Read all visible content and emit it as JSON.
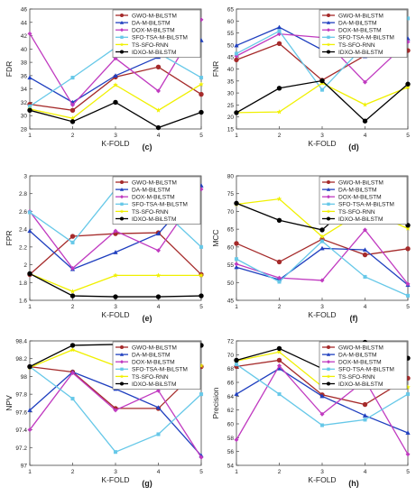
{
  "figure": {
    "legend_labels": [
      "GWO-M-BiLSTM",
      "DA-M-BiLSTM",
      "DOX-M-BiLSTM",
      "SFO-TSA-M-BiLSTM",
      "TS-SFO-RNN",
      "IDXO-M-BiLSTM"
    ],
    "series_colors": [
      "#a52a2a",
      "#1f3fbf",
      "#c03ac0",
      "#66c8e8",
      "#f0f000",
      "#000000"
    ]
  },
  "chart_data": [
    {
      "type": "line",
      "panel": "(c)",
      "xlabel": "K-FOLD",
      "ylabel": "FDR",
      "x": [
        1,
        2,
        3,
        4,
        5
      ],
      "xlim": [
        1,
        5
      ],
      "ylim": [
        28,
        46
      ],
      "yticks": [
        28,
        30,
        32,
        34,
        36,
        38,
        40,
        42,
        44,
        46
      ],
      "legend": "top-right",
      "legend_inside": true,
      "series": [
        {
          "name": "GWO-M-BiLSTM",
          "values": [
            31.7,
            30.8,
            35.8,
            37.3,
            33.2
          ]
        },
        {
          "name": "DA-M-BiLSTM",
          "values": [
            35.7,
            32.0,
            36.0,
            38.8,
            41.3
          ]
        },
        {
          "name": "DOX-M-BiLSTM",
          "values": [
            42.3,
            31.6,
            38.6,
            33.7,
            44.4
          ]
        },
        {
          "name": "SFO-TSA-M-BiLSTM",
          "values": [
            31.4,
            35.7,
            40.2,
            39.4,
            35.7
          ]
        },
        {
          "name": "TS-SFO-RNN",
          "values": [
            31.0,
            29.6,
            34.6,
            30.8,
            34.7
          ]
        },
        {
          "name": "IDXO-M-BiLSTM",
          "values": [
            30.8,
            29.1,
            32.0,
            28.2,
            30.5
          ]
        }
      ]
    },
    {
      "type": "line",
      "panel": "(d)",
      "xlabel": "K-FOLD",
      "ylabel": "FNR",
      "x": [
        1,
        2,
        3,
        4,
        5
      ],
      "xlim": [
        1,
        5
      ],
      "ylim": [
        15,
        65
      ],
      "yticks": [
        15,
        20,
        25,
        30,
        35,
        40,
        45,
        50,
        55,
        60,
        65
      ],
      "legend": "top-right",
      "legend_inside": true,
      "series": [
        {
          "name": "GWO-M-BiLSTM",
          "values": [
            43.8,
            50.6,
            35.3,
            45.6,
            47.7
          ]
        },
        {
          "name": "DA-M-BiLSTM",
          "values": [
            49.8,
            57.4,
            48.0,
            45.3,
            52.7
          ]
        },
        {
          "name": "DOX-M-BiLSTM",
          "values": [
            45.4,
            54.6,
            53.1,
            34.5,
            51.3
          ]
        },
        {
          "name": "SFO-TSA-M-BiLSTM",
          "values": [
            46.4,
            55.8,
            31.3,
            50.0,
            61.1
          ]
        },
        {
          "name": "TS-SFO-RNN",
          "values": [
            21.8,
            22.1,
            34.1,
            25.1,
            32.4
          ]
        },
        {
          "name": "IDXO-M-BiLSTM",
          "values": [
            21.8,
            32.0,
            35.1,
            18.3,
            33.7
          ]
        }
      ]
    },
    {
      "type": "line",
      "panel": "(e)",
      "xlabel": "K-FOLD",
      "ylabel": "FPR",
      "x": [
        1,
        2,
        3,
        4,
        5
      ],
      "xlim": [
        1,
        5
      ],
      "ylim": [
        1.6,
        3.0
      ],
      "yticks": [
        1.6,
        1.8,
        2.0,
        2.2,
        2.4,
        2.6,
        2.8,
        3.0
      ],
      "legend": "top-right",
      "legend_inside": true,
      "series": [
        {
          "name": "GWO-M-BiLSTM",
          "values": [
            1.89,
            2.32,
            2.35,
            2.36,
            1.89
          ]
        },
        {
          "name": "DA-M-BiLSTM",
          "values": [
            2.38,
            1.95,
            2.14,
            2.35,
            2.89
          ]
        },
        {
          "name": "DOX-M-BiLSTM",
          "values": [
            2.6,
            1.96,
            2.38,
            2.16,
            2.85
          ]
        },
        {
          "name": "SFO-TSA-M-BiLSTM",
          "values": [
            2.59,
            2.25,
            2.85,
            2.65,
            2.2
          ]
        },
        {
          "name": "TS-SFO-RNN",
          "values": [
            1.9,
            1.7,
            1.88,
            1.88,
            1.88
          ]
        },
        {
          "name": "IDXO-M-BiLSTM",
          "values": [
            1.9,
            1.65,
            1.64,
            1.64,
            1.65
          ]
        }
      ]
    },
    {
      "type": "line",
      "panel": "(f)",
      "xlabel": "K-FOLD",
      "ylabel": "MCC",
      "x": [
        1,
        2,
        3,
        4,
        5
      ],
      "xlim": [
        1,
        5
      ],
      "ylim": [
        45,
        80
      ],
      "yticks": [
        45,
        50,
        55,
        60,
        65,
        70,
        75,
        80
      ],
      "legend": "top-right",
      "legend_inside": true,
      "series": [
        {
          "name": "GWO-M-BiLSTM",
          "values": [
            61.0,
            55.8,
            62.2,
            57.8,
            59.5
          ]
        },
        {
          "name": "DA-M-BiLSTM",
          "values": [
            54.3,
            50.8,
            59.6,
            59.2,
            49.3
          ]
        },
        {
          "name": "DOX-M-BiLSTM",
          "values": [
            55.2,
            51.3,
            50.6,
            64.8,
            49.6
          ]
        },
        {
          "name": "SFO-TSA-M-BiLSTM",
          "values": [
            56.6,
            50.2,
            61.6,
            51.6,
            46.3
          ]
        },
        {
          "name": "TS-SFO-RNN",
          "values": [
            72.0,
            73.5,
            62.9,
            70.4,
            65.2
          ]
        },
        {
          "name": "IDXO-M-BiLSTM",
          "values": [
            72.3,
            67.5,
            64.8,
            75.5,
            66.1
          ]
        }
      ]
    },
    {
      "type": "line",
      "panel": "(g)",
      "xlabel": "K-FOLD",
      "ylabel": "NPV",
      "x": [
        1,
        2,
        3,
        4,
        5
      ],
      "xlim": [
        1,
        5
      ],
      "ylim": [
        97.0,
        98.4
      ],
      "yticks": [
        97.0,
        97.2,
        97.4,
        97.6,
        97.8,
        98.0,
        98.2,
        98.4
      ],
      "legend": "top-right",
      "legend_inside": true,
      "series": [
        {
          "name": "GWO-M-BiLSTM",
          "values": [
            98.11,
            98.05,
            97.64,
            97.64,
            98.11
          ]
        },
        {
          "name": "DA-M-BiLSTM",
          "values": [
            97.62,
            98.05,
            97.86,
            97.65,
            97.11
          ]
        },
        {
          "name": "DOX-M-BiLSTM",
          "values": [
            97.4,
            98.04,
            97.62,
            97.84,
            97.09
          ]
        },
        {
          "name": "SFO-TSA-M-BiLSTM",
          "values": [
            98.11,
            97.75,
            97.15,
            97.35,
            97.8
          ]
        },
        {
          "name": "TS-SFO-RNN",
          "values": [
            98.1,
            98.3,
            98.12,
            98.12,
            98.12
          ]
        },
        {
          "name": "IDXO-M-BiLSTM",
          "values": [
            98.11,
            98.35,
            98.36,
            98.36,
            98.35
          ]
        }
      ]
    },
    {
      "type": "line",
      "panel": "(h)",
      "xlabel": "K-FOLD",
      "ylabel": "Precision",
      "x": [
        1,
        2,
        3,
        4,
        5
      ],
      "xlim": [
        1,
        5
      ],
      "ylim": [
        54,
        72
      ],
      "yticks": [
        54,
        56,
        58,
        60,
        62,
        64,
        66,
        68,
        70,
        72
      ],
      "legend": "top-right",
      "legend_inside": true,
      "series": [
        {
          "name": "GWO-M-BiLSTM",
          "values": [
            68.3,
            69.2,
            64.2,
            62.8,
            66.6
          ]
        },
        {
          "name": "DA-M-BiLSTM",
          "values": [
            64.3,
            68.0,
            64.0,
            61.2,
            58.7
          ]
        },
        {
          "name": "DOX-M-BiLSTM",
          "values": [
            57.7,
            68.4,
            61.4,
            66.3,
            55.6
          ]
        },
        {
          "name": "SFO-TSA-M-BiLSTM",
          "values": [
            68.6,
            64.3,
            59.8,
            60.6,
            64.3
          ]
        },
        {
          "name": "TS-SFO-RNN",
          "values": [
            69.1,
            70.4,
            65.4,
            69.2,
            65.3
          ]
        },
        {
          "name": "IDXO-M-BiLSTM",
          "values": [
            69.2,
            70.9,
            68.0,
            71.8,
            69.5
          ]
        }
      ]
    }
  ]
}
